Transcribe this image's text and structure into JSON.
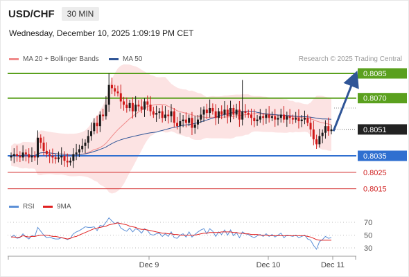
{
  "header": {
    "symbol": "USD/CHF",
    "timeframe": "30 MIN"
  },
  "datetime": "Wednesday, December 10, 2025 1:09:19 PM CET",
  "legend": {
    "ma_bollinger": "MA 20 + Bollinger Bands",
    "ma50": "MA 50",
    "rsi": "RSI",
    "ma9": "9MA",
    "colors": {
      "ma20": "#f08a8a",
      "ma50": "#2f5597",
      "rsi": "#5b8fd6",
      "ma9": "#e02020"
    }
  },
  "credit": "Research © 2025 Trading Central",
  "price_levels": {
    "target": {
      "label": "0.8085",
      "value": 0.8085,
      "color": "#5aa01e"
    },
    "resistance": {
      "label": "0.8070",
      "value": 0.807,
      "color": "#5aa01e"
    },
    "current": {
      "label": "0.8051",
      "value": 0.8051,
      "color": "#222222"
    },
    "pivot": {
      "label": "0.8035",
      "value": 0.8035,
      "color": "#2f6fd0"
    },
    "support1": {
      "label": "0.8025",
      "value": 0.8025,
      "color": "#d02020"
    },
    "support2": {
      "label": "0.8015",
      "value": 0.8015,
      "color": "#d02020"
    }
  },
  "rsi_levels": {
    "high": "70",
    "mid": "50",
    "low": "30"
  },
  "x_labels": [
    "Dec 9",
    "Dec 10",
    "Dec 11"
  ],
  "chart_data": {
    "type": "candlestick",
    "series": [
      {
        "name": "USD/CHF",
        "close": [
          0.8035,
          0.8036,
          0.8035,
          0.8034,
          0.8037,
          0.8036,
          0.8034,
          0.8035,
          0.8034,
          0.8046,
          0.8043,
          0.8038,
          0.8036,
          0.8035,
          0.8034,
          0.8033,
          0.8034,
          0.8035,
          0.8032,
          0.8031,
          0.8032,
          0.8036,
          0.8037,
          0.8039,
          0.8041,
          0.8043,
          0.8047,
          0.805,
          0.8055,
          0.8053,
          0.806,
          0.8059,
          0.8066,
          0.8078,
          0.8076,
          0.8074,
          0.8073,
          0.8068,
          0.8066,
          0.8064,
          0.8067,
          0.8062,
          0.8066,
          0.8065,
          0.8063,
          0.8068,
          0.8066,
          0.8062,
          0.806,
          0.8061,
          0.8062,
          0.8058,
          0.806,
          0.8059,
          0.8062,
          0.8055,
          0.8053,
          0.8056,
          0.8057,
          0.8055,
          0.8058,
          0.8052,
          0.8054,
          0.8057,
          0.806,
          0.8063,
          0.8061,
          0.8064,
          0.8062,
          0.8058,
          0.8062,
          0.806,
          0.8063,
          0.8059,
          0.8064,
          0.806,
          0.8063,
          0.8057,
          0.8062,
          0.8061,
          0.806,
          0.8058,
          0.8056,
          0.8057,
          0.8059,
          0.8058,
          0.806,
          0.8058,
          0.8059,
          0.8057,
          0.8058,
          0.806,
          0.8057,
          0.8059,
          0.8058,
          0.8057,
          0.8058,
          0.8056,
          0.8057,
          0.8058,
          0.8055,
          0.8051,
          0.8045,
          0.8042,
          0.8047,
          0.8049,
          0.8053,
          0.805,
          0.8051
        ],
        "rsi": [
          47,
          50,
          45,
          46,
          52,
          47,
          44,
          49,
          48,
          62,
          56,
          50,
          46,
          47,
          45,
          44,
          44,
          46,
          45,
          43,
          45,
          52,
          55,
          57,
          60,
          63,
          62,
          62,
          63,
          57,
          65,
          64,
          70,
          77,
          72,
          68,
          70,
          61,
          58,
          56,
          61,
          55,
          60,
          58,
          53,
          60,
          57,
          51,
          50,
          52,
          53,
          48,
          52,
          48,
          55,
          46,
          45,
          50,
          52,
          47,
          55,
          47,
          51,
          55,
          58,
          60,
          52,
          60,
          56,
          48,
          55,
          51,
          58,
          50,
          58,
          49,
          54,
          46,
          55,
          52,
          51,
          48,
          46,
          49,
          51,
          48,
          52,
          48,
          51,
          47,
          50,
          53,
          46,
          50,
          49,
          48,
          50,
          46,
          48,
          50,
          44,
          42,
          34,
          28,
          40,
          43,
          48,
          45,
          46
        ],
        "rsi_ma9": [
          47,
          47,
          46,
          47,
          49,
          48,
          47,
          48,
          48,
          49,
          50,
          50,
          50,
          49,
          48,
          48,
          47,
          46,
          45,
          44,
          45,
          47,
          48,
          50,
          52,
          54,
          56,
          58,
          60,
          61,
          62,
          63,
          64,
          66,
          67,
          68,
          69,
          68,
          67,
          66,
          64,
          63,
          62,
          60,
          59,
          59,
          58,
          57,
          56,
          55,
          54,
          53,
          53,
          52,
          52,
          51,
          51,
          50,
          50,
          50,
          50,
          50,
          50,
          51,
          52,
          53,
          53,
          54,
          54,
          54,
          54,
          55,
          55,
          55,
          55,
          54,
          54,
          53,
          53,
          52,
          52,
          51,
          51,
          51,
          50,
          50,
          50,
          49,
          49,
          49,
          49,
          49,
          49,
          49,
          49,
          49,
          49,
          49,
          49,
          49,
          48,
          47,
          45,
          43,
          42,
          42,
          42,
          42,
          42
        ]
      }
    ],
    "xlabels": [
      "Dec 9",
      "Dec 10",
      "Dec 11"
    ],
    "rsi_range": [
      20,
      85
    ]
  }
}
